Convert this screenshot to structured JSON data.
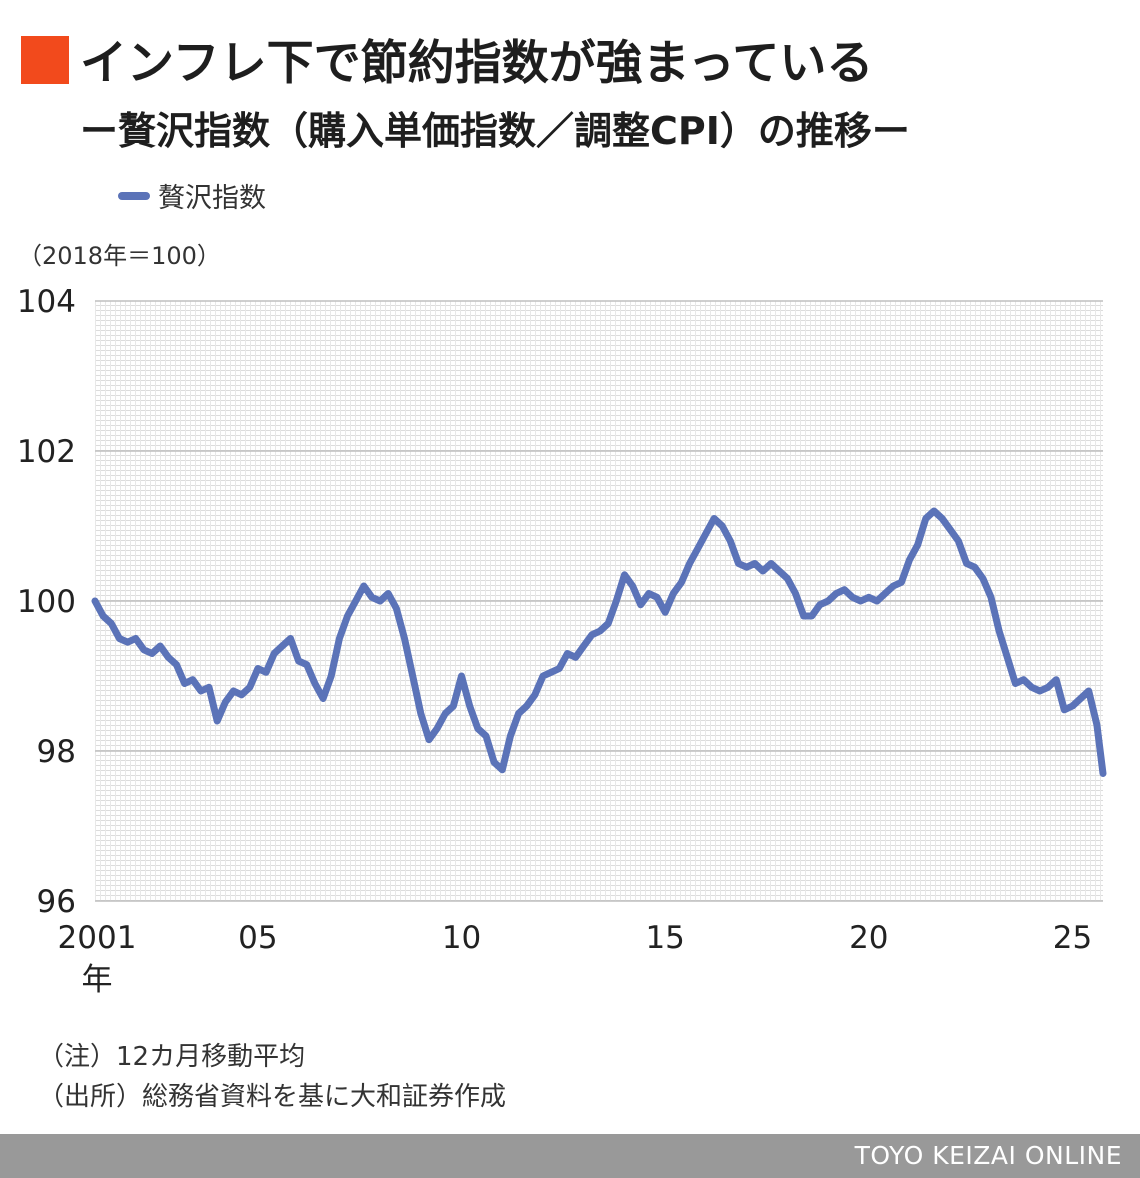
{
  "header": {
    "title": "インフレ下で節約指数が強まっている",
    "subtitle": "ー贅沢指数（購入単価指数／調整CPI）の推移ー"
  },
  "colors": {
    "accent": "#f24a1c",
    "series": "#5b73b8",
    "grid": "#bfbfbf",
    "footer": "#999999"
  },
  "chart_data": {
    "type": "line",
    "unit_label": "（2018年＝100）",
    "ylim": [
      96,
      104
    ],
    "y_ticks": [
      "104",
      "102",
      "100",
      "98",
      "96"
    ],
    "y_tick_values": [
      104,
      102,
      100,
      98,
      96
    ],
    "x_ticks": [
      {
        "value": 2001,
        "label": "2001"
      },
      {
        "value": 2005,
        "label": "05"
      },
      {
        "value": 2010,
        "label": "10"
      },
      {
        "value": 2015,
        "label": "15"
      },
      {
        "value": 2020,
        "label": "20"
      },
      {
        "value": 2025,
        "label": "25"
      }
    ],
    "x_first_suffix": "年",
    "xlim": [
      2001,
      2025.75
    ],
    "grid": true,
    "legend": "top-left",
    "series": [
      {
        "name": "贅沢指数",
        "x": [
          2001.0,
          2001.2,
          2001.4,
          2001.6,
          2001.8,
          2002.0,
          2002.2,
          2002.4,
          2002.6,
          2002.8,
          2003.0,
          2003.2,
          2003.4,
          2003.6,
          2003.8,
          2004.0,
          2004.2,
          2004.4,
          2004.6,
          2004.8,
          2005.0,
          2005.2,
          2005.4,
          2005.6,
          2005.8,
          2006.0,
          2006.2,
          2006.4,
          2006.6,
          2006.8,
          2007.0,
          2007.2,
          2007.4,
          2007.6,
          2007.8,
          2008.0,
          2008.2,
          2008.4,
          2008.6,
          2008.8,
          2009.0,
          2009.2,
          2009.4,
          2009.6,
          2009.8,
          2010.0,
          2010.2,
          2010.4,
          2010.6,
          2010.8,
          2011.0,
          2011.2,
          2011.4,
          2011.6,
          2011.8,
          2012.0,
          2012.2,
          2012.4,
          2012.6,
          2012.8,
          2013.0,
          2013.2,
          2013.4,
          2013.6,
          2013.8,
          2014.0,
          2014.2,
          2014.4,
          2014.6,
          2014.8,
          2015.0,
          2015.2,
          2015.4,
          2015.6,
          2015.8,
          2016.0,
          2016.2,
          2016.4,
          2016.6,
          2016.8,
          2017.0,
          2017.2,
          2017.4,
          2017.6,
          2017.8,
          2018.0,
          2018.2,
          2018.4,
          2018.6,
          2018.8,
          2019.0,
          2019.2,
          2019.4,
          2019.6,
          2019.8,
          2020.0,
          2020.2,
          2020.4,
          2020.6,
          2020.8,
          2021.0,
          2021.2,
          2021.4,
          2021.6,
          2021.8,
          2022.0,
          2022.2,
          2022.4,
          2022.6,
          2022.8,
          2023.0,
          2023.2,
          2023.4,
          2023.6,
          2023.8,
          2024.0,
          2024.2,
          2024.4,
          2024.6,
          2024.8,
          2025.0,
          2025.2,
          2025.4,
          2025.6,
          2025.75
        ],
        "values": [
          100.0,
          99.8,
          99.7,
          99.5,
          99.45,
          99.5,
          99.35,
          99.3,
          99.4,
          99.25,
          99.15,
          98.9,
          98.95,
          98.8,
          98.85,
          98.4,
          98.65,
          98.8,
          98.75,
          98.85,
          99.1,
          99.05,
          99.3,
          99.4,
          99.5,
          99.2,
          99.15,
          98.9,
          98.7,
          99.0,
          99.5,
          99.8,
          100.0,
          100.2,
          100.05,
          100.0,
          100.1,
          99.9,
          99.5,
          99.0,
          98.5,
          98.15,
          98.3,
          98.5,
          98.6,
          99.0,
          98.6,
          98.3,
          98.2,
          97.85,
          97.75,
          98.2,
          98.5,
          98.6,
          98.75,
          99.0,
          99.05,
          99.1,
          99.3,
          99.25,
          99.4,
          99.55,
          99.6,
          99.7,
          100.0,
          100.35,
          100.2,
          99.95,
          100.1,
          100.05,
          99.85,
          100.1,
          100.25,
          100.5,
          100.7,
          100.9,
          101.1,
          101.0,
          100.8,
          100.5,
          100.45,
          100.5,
          100.4,
          100.5,
          100.4,
          100.3,
          100.1,
          99.8,
          99.8,
          99.95,
          100.0,
          100.1,
          100.15,
          100.05,
          100.0,
          100.05,
          100.0,
          100.1,
          100.2,
          100.25,
          100.55,
          100.75,
          101.1,
          101.2,
          101.1,
          100.95,
          100.8,
          100.5,
          100.45,
          100.3,
          100.05,
          99.6,
          99.25,
          98.9,
          98.95,
          98.85,
          98.8,
          98.85,
          98.95,
          98.55,
          98.6,
          98.7,
          98.8,
          98.35,
          97.7
        ]
      }
    ]
  },
  "notes": {
    "note1": "（注）12カ月移動平均",
    "note2": "（出所）総務省資料を基に大和証券作成"
  },
  "footer": {
    "brand": "TOYO KEIZAI ONLINE"
  }
}
